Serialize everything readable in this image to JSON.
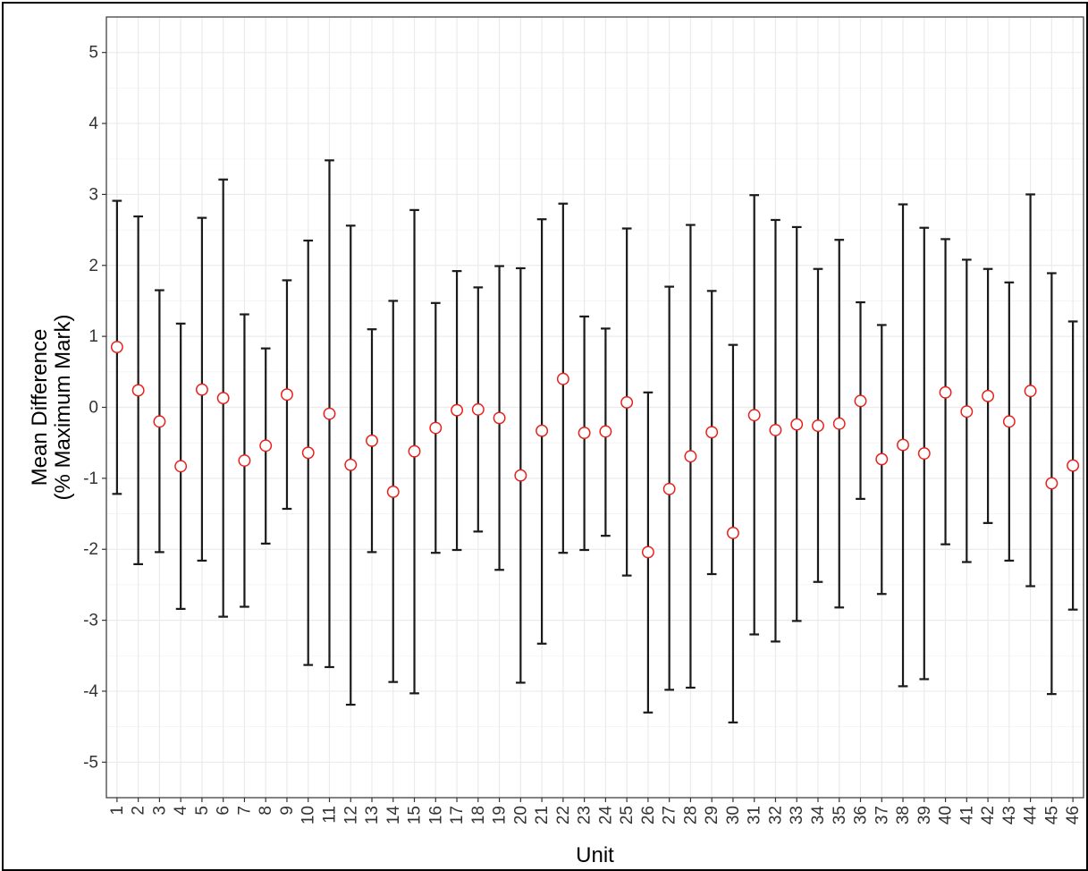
{
  "chart_data": {
    "type": "errorbar",
    "xlabel": "Unit",
    "ylabel_line1": "Mean Difference",
    "ylabel_line2": "(% Maximum Mark)",
    "ylim": [
      -5.5,
      5.5
    ],
    "yticks": [
      -5,
      -4,
      -3,
      -2,
      -1,
      0,
      1,
      2,
      3,
      4,
      5
    ],
    "grid": true,
    "point_color": "#e8201c",
    "bar_color": "#1a1a1a",
    "categories": [
      "1",
      "2",
      "3",
      "4",
      "5",
      "6",
      "7",
      "8",
      "9",
      "10",
      "11",
      "12",
      "13",
      "14",
      "15",
      "16",
      "17",
      "18",
      "19",
      "20",
      "21",
      "22",
      "23",
      "24",
      "25",
      "26",
      "27",
      "28",
      "29",
      "30",
      "31",
      "32",
      "33",
      "34",
      "35",
      "36",
      "37",
      "38",
      "39",
      "40",
      "41",
      "42",
      "43",
      "44",
      "45",
      "46"
    ],
    "mean": [
      0.85,
      0.24,
      -0.2,
      -0.83,
      0.25,
      0.13,
      -0.75,
      -0.54,
      0.18,
      -0.64,
      -0.09,
      -0.81,
      -0.47,
      -1.19,
      -0.62,
      -0.29,
      -0.04,
      -0.03,
      -0.15,
      -0.96,
      -0.33,
      0.4,
      -0.36,
      -0.34,
      0.07,
      -2.04,
      -1.15,
      -0.69,
      -0.35,
      -1.77,
      -0.11,
      -0.32,
      -0.24,
      -0.26,
      -0.23,
      0.09,
      -0.73,
      -0.53,
      -0.65,
      0.21,
      -0.06,
      0.16,
      -0.2,
      0.23,
      -1.07,
      -0.82
    ],
    "lower": [
      -1.22,
      -2.21,
      -2.04,
      -2.84,
      -2.16,
      -2.95,
      -2.81,
      -1.92,
      -1.43,
      -3.63,
      -3.66,
      -4.19,
      -2.04,
      -3.87,
      -4.03,
      -2.05,
      -2.01,
      -1.75,
      -2.29,
      -3.88,
      -3.33,
      -2.05,
      -2.01,
      -1.81,
      -2.37,
      -4.3,
      -3.98,
      -3.95,
      -2.35,
      -4.44,
      -3.2,
      -3.3,
      -3.01,
      -2.46,
      -2.82,
      -1.29,
      -2.63,
      -3.93,
      -3.83,
      -1.93,
      -2.18,
      -1.63,
      -2.16,
      -2.52,
      -4.04,
      -2.85
    ],
    "upper": [
      2.91,
      2.69,
      1.65,
      1.18,
      2.67,
      3.21,
      1.31,
      0.83,
      1.79,
      2.35,
      3.48,
      2.56,
      1.1,
      1.5,
      2.78,
      1.47,
      1.92,
      1.69,
      1.99,
      1.96,
      2.65,
      2.87,
      1.28,
      1.11,
      2.52,
      0.21,
      1.7,
      2.57,
      1.64,
      0.88,
      2.99,
      2.64,
      2.54,
      1.95,
      2.36,
      1.48,
      1.16,
      2.86,
      2.53,
      2.37,
      2.08,
      1.95,
      1.76,
      3.0,
      1.89,
      1.21
    ]
  }
}
